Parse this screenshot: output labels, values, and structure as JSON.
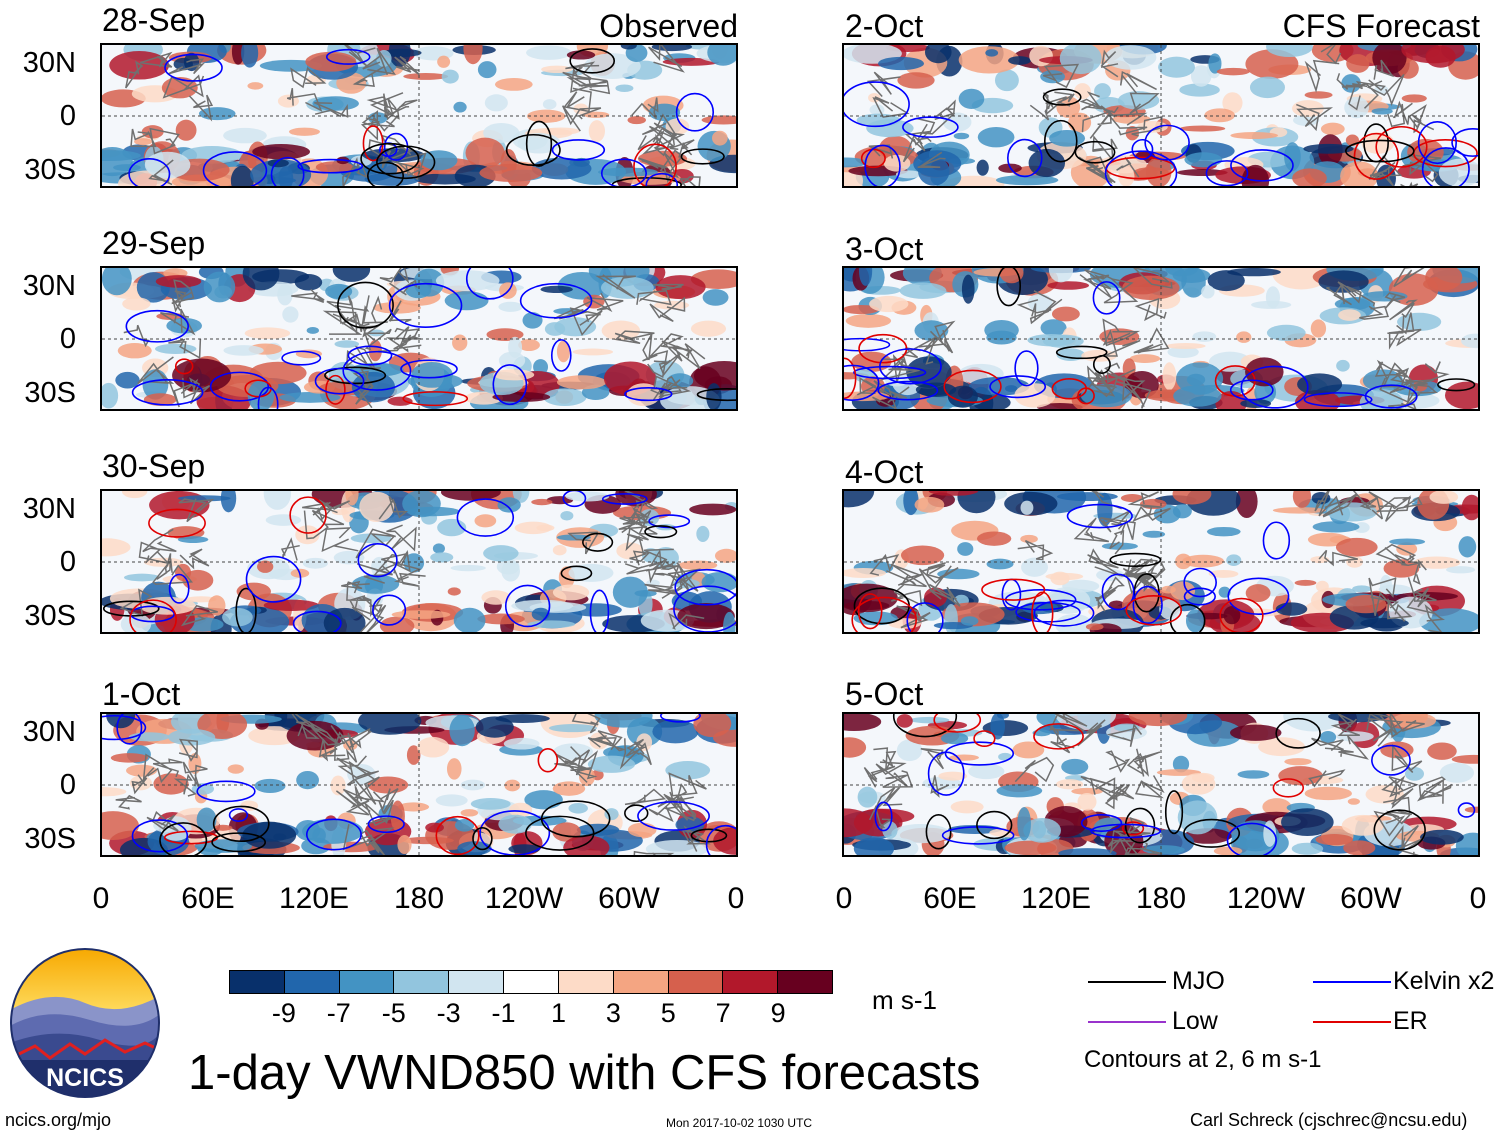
{
  "header": {
    "observed_label": "Observed",
    "forecast_label": "CFS Forecast"
  },
  "observed_dates": [
    "28-Sep",
    "29-Sep",
    "30-Sep",
    "1-Oct"
  ],
  "forecast_dates": [
    "2-Oct",
    "3-Oct",
    "4-Oct",
    "5-Oct"
  ],
  "lat_labels": [
    "30N",
    "0",
    "30S"
  ],
  "lon_labels": [
    "0",
    "60E",
    "120E",
    "180",
    "120W",
    "60W",
    "0"
  ],
  "colorbar": {
    "colors": [
      "#08306b",
      "#2166ac",
      "#4393c3",
      "#92c5de",
      "#d1e5f0",
      "#ffffff",
      "#fddbc7",
      "#f4a582",
      "#d6604d",
      "#b2182b",
      "#67001f"
    ],
    "ticks": [
      "-9",
      "-7",
      "-5",
      "-3",
      "-1",
      "1",
      "3",
      "5",
      "7",
      "9"
    ],
    "units": "m s-1"
  },
  "legend": {
    "mjo": {
      "label": "MJO",
      "color": "#000000"
    },
    "kelvin": {
      "label": "Kelvin x2",
      "color": "#0000ff"
    },
    "low": {
      "label": "Low",
      "color": "#9933cc"
    },
    "er": {
      "label": "ER",
      "color": "#e00000"
    },
    "note": "Contours at 2, 6 m s-1"
  },
  "logo": {
    "text": "NCICS"
  },
  "title": "1-day VWND850 with CFS forecasts",
  "footer": {
    "url": "ncics.org/mjo",
    "timestamp": "Mon 2017-10-02 1030 UTC",
    "credit": "Carl Schreck (cjschrec@ncsu.edu)"
  }
}
